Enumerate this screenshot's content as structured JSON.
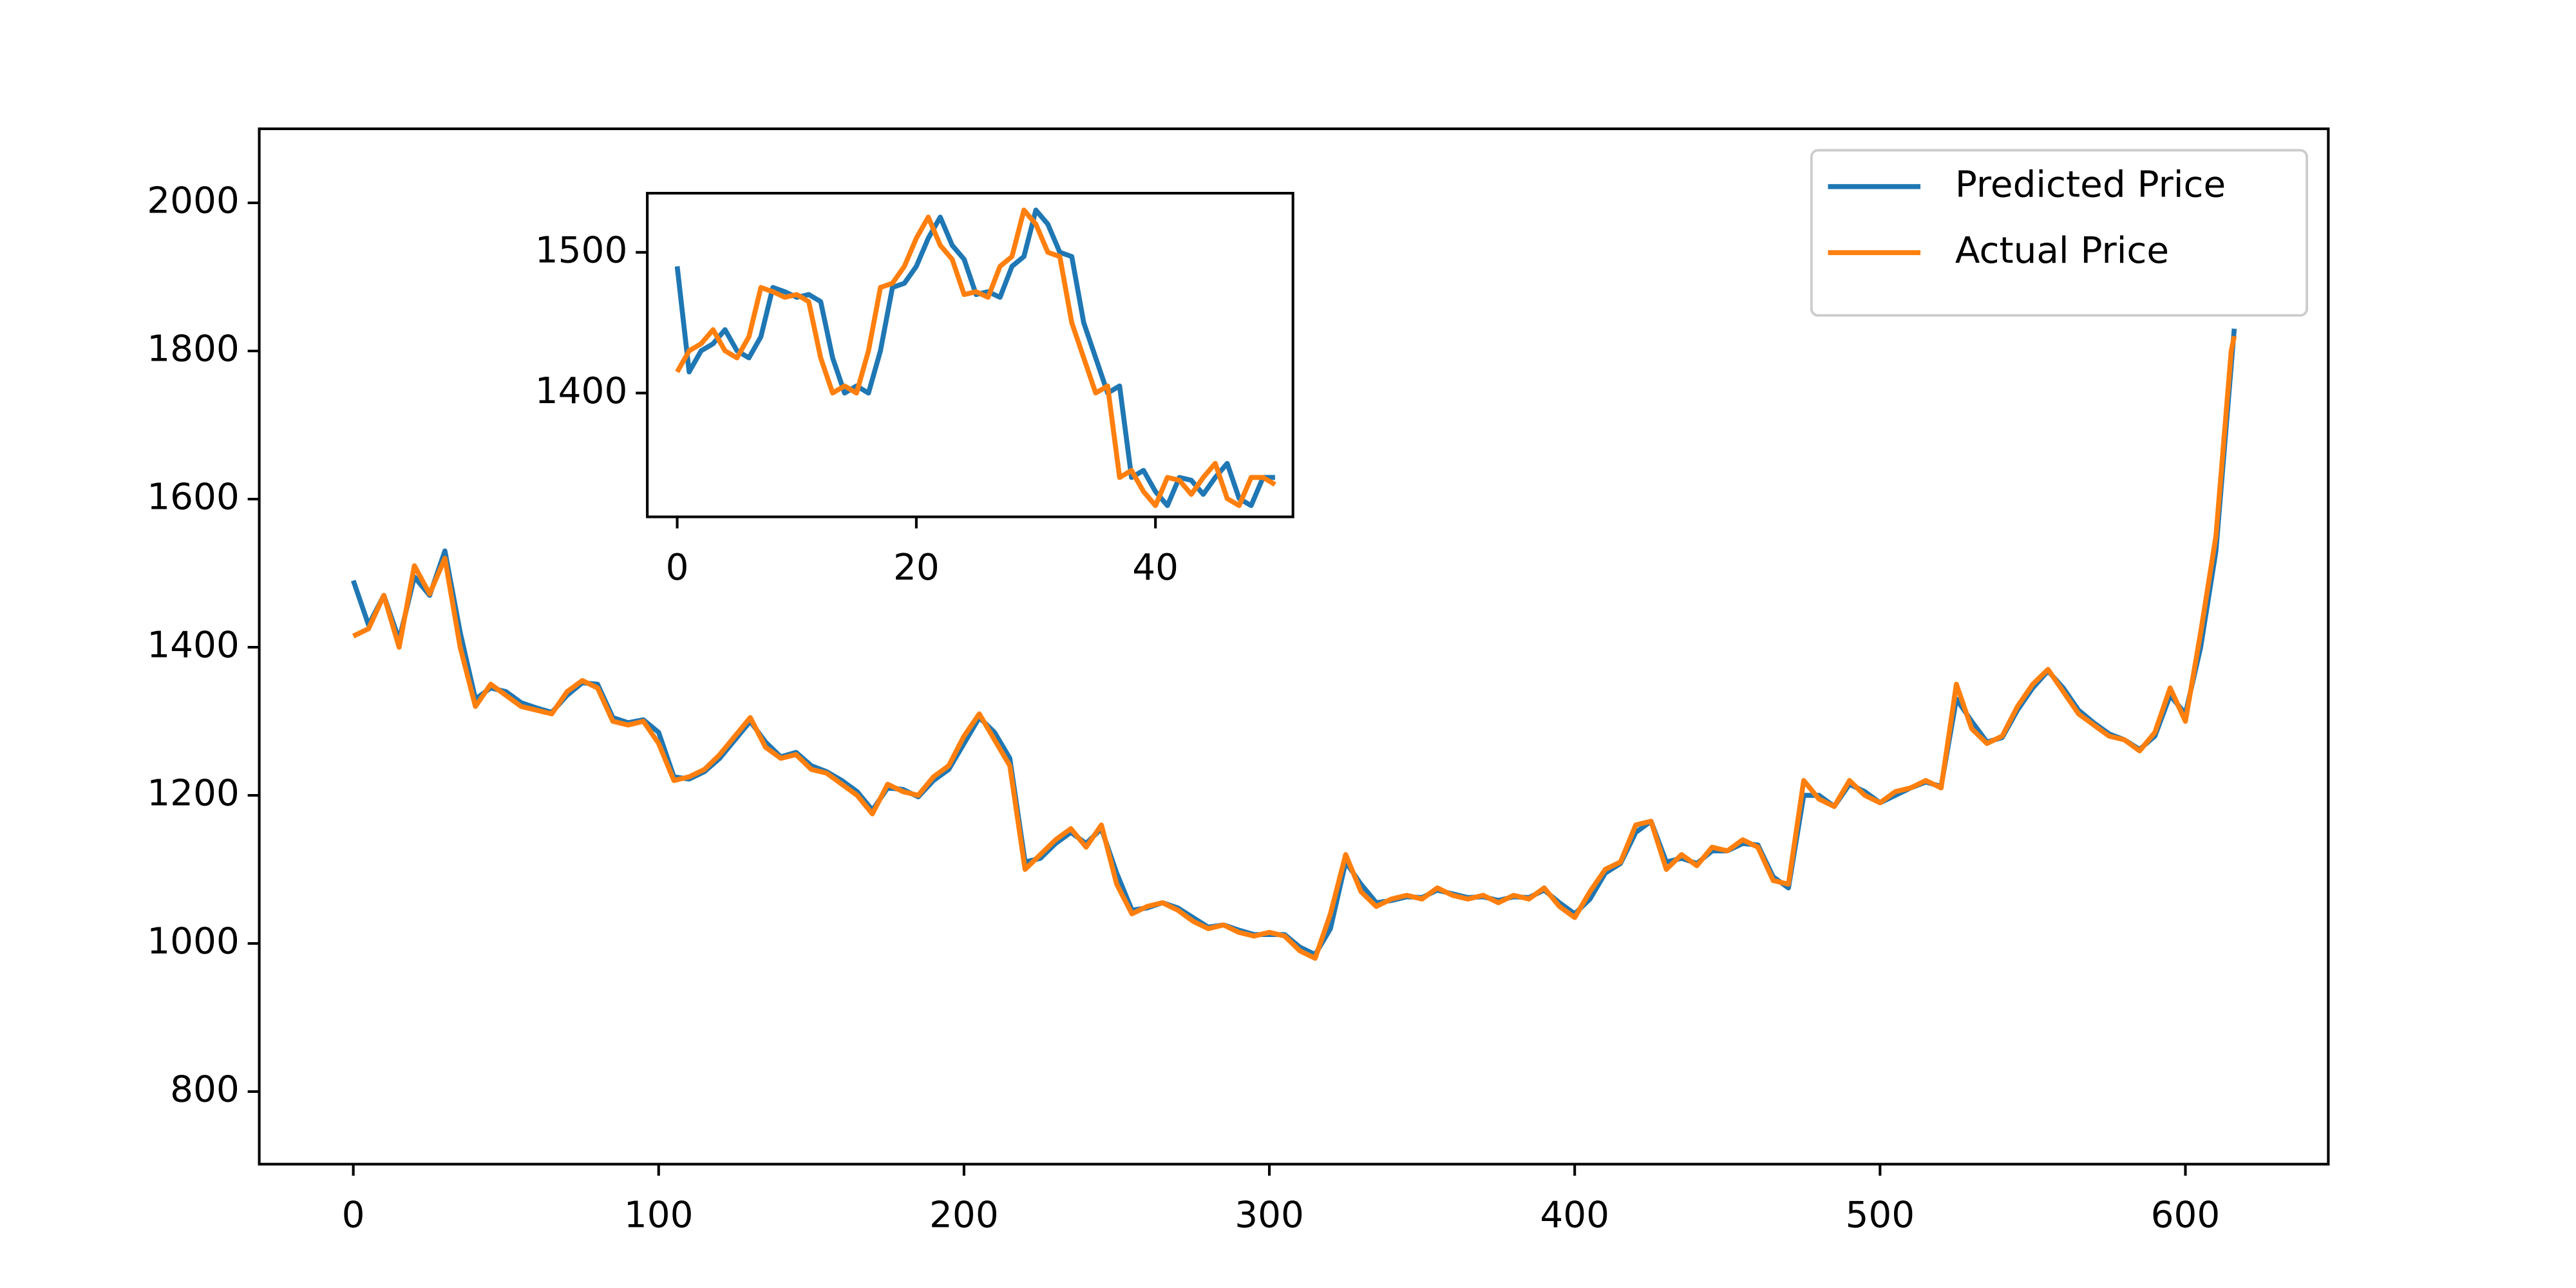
{
  "chart_data": [
    {
      "type": "line",
      "legend": "upper right",
      "x": [
        0,
        5,
        10,
        15,
        20,
        25,
        30,
        35,
        40,
        45,
        50,
        55,
        60,
        65,
        70,
        75,
        80,
        85,
        90,
        95,
        100,
        105,
        110,
        115,
        120,
        125,
        130,
        135,
        140,
        145,
        150,
        155,
        160,
        165,
        170,
        175,
        180,
        185,
        190,
        195,
        200,
        205,
        210,
        215,
        220,
        225,
        230,
        235,
        240,
        245,
        250,
        255,
        260,
        265,
        270,
        275,
        280,
        285,
        290,
        295,
        300,
        305,
        310,
        315,
        320,
        325,
        330,
        335,
        340,
        345,
        350,
        355,
        360,
        365,
        370,
        375,
        380,
        385,
        390,
        395,
        400,
        405,
        410,
        415,
        420,
        425,
        430,
        435,
        440,
        445,
        450,
        455,
        460,
        465,
        470,
        475,
        480,
        485,
        490,
        495,
        500,
        505,
        510,
        515,
        520,
        525,
        530,
        535,
        540,
        545,
        550,
        555,
        560,
        565,
        570,
        575,
        580,
        585,
        590,
        595,
        600,
        605,
        610,
        615,
        616
      ],
      "series": [
        {
          "name": "Predicted Price",
          "color": "#1f77b4",
          "values": [
            1490,
            1430,
            1470,
            1410,
            1495,
            1470,
            1530,
            1420,
            1330,
            1345,
            1340,
            1325,
            1318,
            1312,
            1335,
            1352,
            1350,
            1305,
            1298,
            1302,
            1285,
            1225,
            1222,
            1232,
            1250,
            1275,
            1300,
            1272,
            1252,
            1258,
            1240,
            1232,
            1220,
            1205,
            1180,
            1210,
            1208,
            1198,
            1220,
            1235,
            1270,
            1305,
            1285,
            1250,
            1110,
            1115,
            1135,
            1150,
            1135,
            1155,
            1095,
            1045,
            1048,
            1055,
            1048,
            1035,
            1022,
            1025,
            1018,
            1012,
            1012,
            1012,
            995,
            985,
            1020,
            1110,
            1080,
            1055,
            1058,
            1063,
            1062,
            1072,
            1067,
            1062,
            1063,
            1058,
            1063,
            1062,
            1072,
            1055,
            1040,
            1060,
            1095,
            1108,
            1150,
            1165,
            1110,
            1115,
            1108,
            1125,
            1125,
            1135,
            1133,
            1090,
            1075,
            1200,
            1200,
            1185,
            1215,
            1205,
            1190,
            1200,
            1210,
            1218,
            1212,
            1330,
            1300,
            1272,
            1278,
            1315,
            1345,
            1368,
            1345,
            1315,
            1298,
            1283,
            1275,
            1262,
            1280,
            1335,
            1310,
            1400,
            1530,
            1780,
            1830
          ]
        },
        {
          "name": "Actual Price",
          "color": "#ff7f0e",
          "values": [
            1415,
            1425,
            1470,
            1400,
            1510,
            1472,
            1520,
            1400,
            1320,
            1350,
            1335,
            1320,
            1315,
            1310,
            1340,
            1355,
            1345,
            1300,
            1295,
            1300,
            1270,
            1220,
            1225,
            1235,
            1255,
            1280,
            1305,
            1265,
            1250,
            1255,
            1235,
            1230,
            1215,
            1200,
            1175,
            1215,
            1205,
            1200,
            1225,
            1240,
            1280,
            1310,
            1275,
            1240,
            1100,
            1120,
            1140,
            1155,
            1130,
            1160,
            1080,
            1040,
            1050,
            1055,
            1045,
            1030,
            1020,
            1025,
            1015,
            1010,
            1015,
            1010,
            990,
            980,
            1040,
            1120,
            1070,
            1050,
            1060,
            1065,
            1060,
            1075,
            1065,
            1060,
            1065,
            1055,
            1065,
            1060,
            1075,
            1050,
            1035,
            1070,
            1100,
            1110,
            1160,
            1165,
            1100,
            1120,
            1105,
            1130,
            1125,
            1140,
            1130,
            1085,
            1080,
            1220,
            1195,
            1185,
            1220,
            1200,
            1190,
            1205,
            1210,
            1220,
            1210,
            1350,
            1290,
            1270,
            1280,
            1320,
            1350,
            1370,
            1340,
            1310,
            1295,
            1280,
            1275,
            1260,
            1285,
            1345,
            1300,
            1420,
            1550,
            1800,
            1820
          ]
        }
      ],
      "xlim": [
        -30.8,
        646.8
      ],
      "ylim": [
        702,
        2100
      ],
      "xticks": [
        0,
        100,
        200,
        300,
        400,
        500,
        600
      ],
      "yticks": [
        800,
        1000,
        1200,
        1400,
        1600,
        1800,
        2000
      ]
    },
    {
      "type": "line",
      "x": [
        0,
        1,
        2,
        3,
        4,
        5,
        6,
        7,
        8,
        9,
        10,
        11,
        12,
        13,
        14,
        15,
        16,
        17,
        18,
        19,
        20,
        21,
        22,
        23,
        24,
        25,
        26,
        27,
        28,
        29,
        30,
        31,
        32,
        33,
        34,
        35,
        36,
        37,
        38,
        39,
        40,
        41,
        42,
        43,
        44,
        45,
        46,
        47,
        48,
        49,
        50
      ],
      "series": [
        {
          "color": "#1f77b4",
          "values": [
            1490,
            1415,
            1430,
            1435,
            1445,
            1430,
            1425,
            1440,
            1475,
            1472,
            1468,
            1470,
            1465,
            1425,
            1400,
            1405,
            1400,
            1430,
            1475,
            1478,
            1490,
            1510,
            1525,
            1505,
            1495,
            1470,
            1472,
            1468,
            1490,
            1497,
            1530,
            1520,
            1500,
            1497,
            1450,
            1425,
            1400,
            1405,
            1340,
            1345,
            1330,
            1320,
            1340,
            1338,
            1328,
            1340,
            1350,
            1325,
            1320,
            1340,
            1340
          ]
        },
        {
          "color": "#ff7f0e",
          "values": [
            1415,
            1430,
            1435,
            1445,
            1430,
            1425,
            1440,
            1475,
            1472,
            1468,
            1470,
            1465,
            1425,
            1400,
            1405,
            1400,
            1430,
            1475,
            1478,
            1490,
            1510,
            1525,
            1505,
            1495,
            1470,
            1472,
            1468,
            1490,
            1497,
            1530,
            1520,
            1500,
            1497,
            1450,
            1425,
            1400,
            1405,
            1340,
            1345,
            1330,
            1320,
            1340,
            1338,
            1328,
            1340,
            1350,
            1325,
            1320,
            1340,
            1340,
            1335
          ]
        }
      ],
      "xlim": [
        -2.5,
        51.5
      ],
      "ylim": [
        1312,
        1542
      ],
      "xticks": [
        0,
        20,
        40
      ],
      "yticks": [
        1400,
        1500
      ]
    }
  ]
}
